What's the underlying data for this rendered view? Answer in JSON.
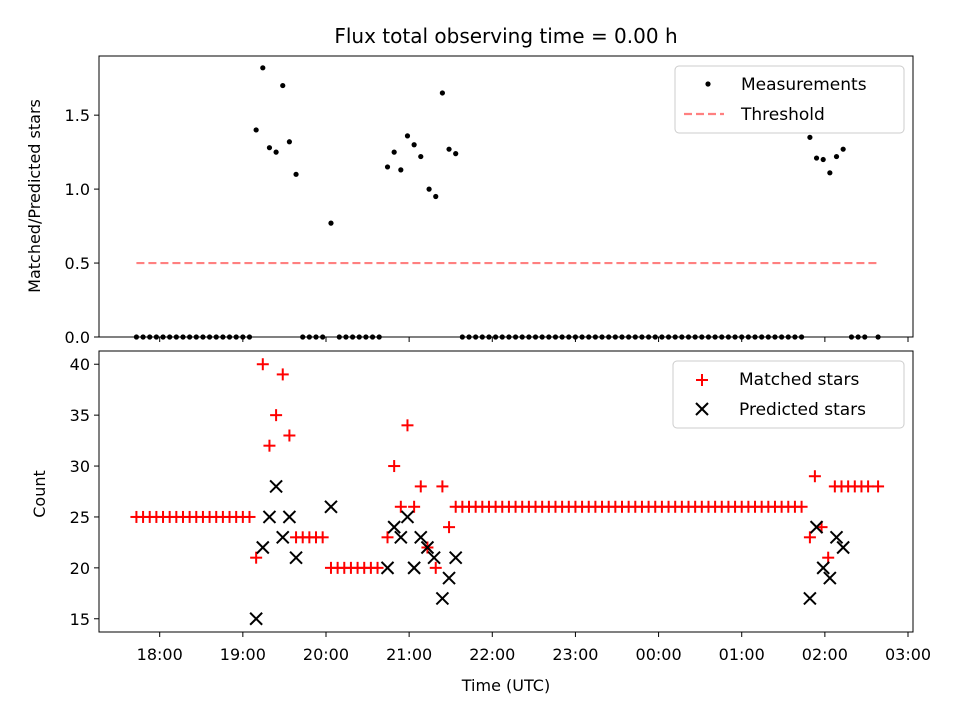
{
  "chart_data": [
    {
      "type": "scatter",
      "title": "Flux total observing time = 0.00 h",
      "xlabel": "",
      "ylabel": "Matched/Predicted stars",
      "xlim": [
        17.27,
        27.06
      ],
      "ylim": [
        0.0,
        1.9
      ],
      "yticks": [
        0.0,
        0.5,
        1.0,
        1.5
      ],
      "ytick_labels": [
        "0.0",
        "0.5",
        "1.0",
        "1.5"
      ],
      "legend": {
        "position": "top-right",
        "entries": [
          {
            "label": "Measurements",
            "marker": "dot",
            "color": "#000000"
          },
          {
            "label": "Threshold",
            "marker": "dashed-line",
            "color": "#ff8080"
          }
        ]
      },
      "threshold": {
        "value": 0.5,
        "x_start": 17.72,
        "x_end": 26.64
      },
      "series": [
        {
          "name": "Measurements",
          "points": [
            [
              17.72,
              0
            ],
            [
              17.8,
              0
            ],
            [
              17.88,
              0
            ],
            [
              17.96,
              0
            ],
            [
              18.04,
              0
            ],
            [
              18.12,
              0
            ],
            [
              18.2,
              0
            ],
            [
              18.28,
              0
            ],
            [
              18.36,
              0
            ],
            [
              18.44,
              0
            ],
            [
              18.52,
              0
            ],
            [
              18.6,
              0
            ],
            [
              18.68,
              0
            ],
            [
              18.76,
              0
            ],
            [
              18.84,
              0
            ],
            [
              18.92,
              0
            ],
            [
              19.0,
              0
            ],
            [
              19.08,
              0
            ],
            [
              19.16,
              1.4
            ],
            [
              19.24,
              1.82
            ],
            [
              19.32,
              1.28
            ],
            [
              19.4,
              1.25
            ],
            [
              19.48,
              1.7
            ],
            [
              19.56,
              1.32
            ],
            [
              19.64,
              1.1
            ],
            [
              19.72,
              0
            ],
            [
              19.8,
              0
            ],
            [
              19.88,
              0
            ],
            [
              19.96,
              0
            ],
            [
              20.06,
              0.77
            ],
            [
              20.16,
              0
            ],
            [
              20.24,
              0
            ],
            [
              20.32,
              0
            ],
            [
              20.4,
              0
            ],
            [
              20.48,
              0
            ],
            [
              20.56,
              0
            ],
            [
              20.64,
              0
            ],
            [
              20.74,
              1.15
            ],
            [
              20.82,
              1.25
            ],
            [
              20.9,
              1.13
            ],
            [
              20.98,
              1.36
            ],
            [
              21.06,
              1.3
            ],
            [
              21.14,
              1.22
            ],
            [
              21.24,
              1.0
            ],
            [
              21.32,
              0.95
            ],
            [
              21.4,
              1.65
            ],
            [
              21.48,
              1.27
            ],
            [
              21.56,
              1.24
            ],
            [
              21.64,
              0
            ],
            [
              21.72,
              0
            ],
            [
              21.8,
              0
            ],
            [
              21.88,
              0
            ],
            [
              21.96,
              0
            ],
            [
              22.04,
              0
            ],
            [
              22.12,
              0
            ],
            [
              22.2,
              0
            ],
            [
              22.28,
              0
            ],
            [
              22.36,
              0
            ],
            [
              22.44,
              0
            ],
            [
              22.52,
              0
            ],
            [
              22.6,
              0
            ],
            [
              22.68,
              0
            ],
            [
              22.76,
              0
            ],
            [
              22.84,
              0
            ],
            [
              22.92,
              0
            ],
            [
              23.0,
              0
            ],
            [
              23.08,
              0
            ],
            [
              23.16,
              0
            ],
            [
              23.24,
              0
            ],
            [
              23.32,
              0
            ],
            [
              23.4,
              0
            ],
            [
              23.48,
              0
            ],
            [
              23.56,
              0
            ],
            [
              23.64,
              0
            ],
            [
              23.72,
              0
            ],
            [
              23.8,
              0
            ],
            [
              23.88,
              0
            ],
            [
              23.96,
              0
            ],
            [
              24.04,
              0
            ],
            [
              24.12,
              0
            ],
            [
              24.2,
              0
            ],
            [
              24.28,
              0
            ],
            [
              24.36,
              0
            ],
            [
              24.44,
              0
            ],
            [
              24.52,
              0
            ],
            [
              24.6,
              0
            ],
            [
              24.68,
              0
            ],
            [
              24.76,
              0
            ],
            [
              24.84,
              0
            ],
            [
              24.92,
              0
            ],
            [
              25.0,
              0
            ],
            [
              25.08,
              0
            ],
            [
              25.16,
              0
            ],
            [
              25.24,
              0
            ],
            [
              25.32,
              0
            ],
            [
              25.4,
              0
            ],
            [
              25.48,
              0
            ],
            [
              25.56,
              0
            ],
            [
              25.64,
              0
            ],
            [
              25.72,
              0
            ],
            [
              25.82,
              1.35
            ],
            [
              25.9,
              1.21
            ],
            [
              25.98,
              1.2
            ],
            [
              26.06,
              1.11
            ],
            [
              26.14,
              1.22
            ],
            [
              26.22,
              1.27
            ],
            [
              26.32,
              0
            ],
            [
              26.4,
              0
            ],
            [
              26.48,
              0
            ],
            [
              26.64,
              0
            ]
          ]
        }
      ]
    },
    {
      "type": "scatter",
      "title": "",
      "xlabel": "Time (UTC)",
      "ylabel": "Count",
      "xlim": [
        17.27,
        27.06
      ],
      "ylim": [
        13.7,
        41.3
      ],
      "yticks": [
        15,
        20,
        25,
        30,
        35,
        40
      ],
      "ytick_labels": [
        "15",
        "20",
        "25",
        "30",
        "35",
        "40"
      ],
      "xticks": [
        18,
        19,
        20,
        21,
        22,
        23,
        24,
        25,
        26,
        27
      ],
      "xtick_labels": [
        "18:00",
        "19:00",
        "20:00",
        "21:00",
        "22:00",
        "23:00",
        "00:00",
        "01:00",
        "02:00",
        "03:00"
      ],
      "legend": {
        "position": "top-right",
        "entries": [
          {
            "label": "Matched stars",
            "marker": "plus",
            "color": "#ff0000"
          },
          {
            "label": "Predicted stars",
            "marker": "x",
            "color": "#000000"
          }
        ]
      },
      "series": [
        {
          "name": "Matched stars",
          "marker": "plus",
          "color": "#ff0000",
          "points": [
            [
              17.72,
              25
            ],
            [
              17.8,
              25
            ],
            [
              17.88,
              25
            ],
            [
              17.96,
              25
            ],
            [
              18.04,
              25
            ],
            [
              18.12,
              25
            ],
            [
              18.2,
              25
            ],
            [
              18.28,
              25
            ],
            [
              18.36,
              25
            ],
            [
              18.44,
              25
            ],
            [
              18.52,
              25
            ],
            [
              18.6,
              25
            ],
            [
              18.68,
              25
            ],
            [
              18.76,
              25
            ],
            [
              18.84,
              25
            ],
            [
              18.92,
              25
            ],
            [
              19.0,
              25
            ],
            [
              19.08,
              25
            ],
            [
              19.16,
              21
            ],
            [
              19.24,
              40
            ],
            [
              19.32,
              32
            ],
            [
              19.4,
              35
            ],
            [
              19.48,
              39
            ],
            [
              19.56,
              33
            ],
            [
              19.64,
              23
            ],
            [
              19.72,
              23
            ],
            [
              19.8,
              23
            ],
            [
              19.88,
              23
            ],
            [
              19.96,
              23
            ],
            [
              20.06,
              20
            ],
            [
              20.14,
              20
            ],
            [
              20.22,
              20
            ],
            [
              20.3,
              20
            ],
            [
              20.38,
              20
            ],
            [
              20.46,
              20
            ],
            [
              20.54,
              20
            ],
            [
              20.62,
              20
            ],
            [
              20.74,
              23
            ],
            [
              20.82,
              30
            ],
            [
              20.9,
              26
            ],
            [
              20.98,
              34
            ],
            [
              21.06,
              26
            ],
            [
              21.14,
              28
            ],
            [
              21.22,
              22
            ],
            [
              21.32,
              20
            ],
            [
              21.4,
              28
            ],
            [
              21.48,
              24
            ],
            [
              21.56,
              26
            ],
            [
              21.64,
              26
            ],
            [
              21.72,
              26
            ],
            [
              21.8,
              26
            ],
            [
              21.88,
              26
            ],
            [
              21.96,
              26
            ],
            [
              22.04,
              26
            ],
            [
              22.12,
              26
            ],
            [
              22.2,
              26
            ],
            [
              22.28,
              26
            ],
            [
              22.36,
              26
            ],
            [
              22.44,
              26
            ],
            [
              22.52,
              26
            ],
            [
              22.6,
              26
            ],
            [
              22.68,
              26
            ],
            [
              22.76,
              26
            ],
            [
              22.84,
              26
            ],
            [
              22.92,
              26
            ],
            [
              23.0,
              26
            ],
            [
              23.08,
              26
            ],
            [
              23.16,
              26
            ],
            [
              23.24,
              26
            ],
            [
              23.32,
              26
            ],
            [
              23.4,
              26
            ],
            [
              23.48,
              26
            ],
            [
              23.56,
              26
            ],
            [
              23.64,
              26
            ],
            [
              23.72,
              26
            ],
            [
              23.8,
              26
            ],
            [
              23.88,
              26
            ],
            [
              23.96,
              26
            ],
            [
              24.04,
              26
            ],
            [
              24.12,
              26
            ],
            [
              24.2,
              26
            ],
            [
              24.28,
              26
            ],
            [
              24.36,
              26
            ],
            [
              24.44,
              26
            ],
            [
              24.52,
              26
            ],
            [
              24.6,
              26
            ],
            [
              24.68,
              26
            ],
            [
              24.76,
              26
            ],
            [
              24.84,
              26
            ],
            [
              24.92,
              26
            ],
            [
              25.0,
              26
            ],
            [
              25.08,
              26
            ],
            [
              25.16,
              26
            ],
            [
              25.24,
              26
            ],
            [
              25.32,
              26
            ],
            [
              25.4,
              26
            ],
            [
              25.48,
              26
            ],
            [
              25.56,
              26
            ],
            [
              25.64,
              26
            ],
            [
              25.72,
              26
            ],
            [
              25.82,
              23
            ],
            [
              25.88,
              29
            ],
            [
              25.96,
              24
            ],
            [
              26.04,
              21
            ],
            [
              26.12,
              28
            ],
            [
              26.2,
              28
            ],
            [
              26.28,
              28
            ],
            [
              26.36,
              28
            ],
            [
              26.44,
              28
            ],
            [
              26.52,
              28
            ],
            [
              26.64,
              28
            ]
          ]
        },
        {
          "name": "Predicted stars",
          "marker": "x",
          "color": "#000000",
          "points": [
            [
              19.16,
              15
            ],
            [
              19.24,
              22
            ],
            [
              19.32,
              25
            ],
            [
              19.4,
              28
            ],
            [
              19.48,
              23
            ],
            [
              19.56,
              25
            ],
            [
              19.64,
              21
            ],
            [
              20.06,
              26
            ],
            [
              20.74,
              20
            ],
            [
              20.82,
              24
            ],
            [
              20.9,
              23
            ],
            [
              20.98,
              25
            ],
            [
              21.06,
              20
            ],
            [
              21.14,
              23
            ],
            [
              21.22,
              22
            ],
            [
              21.3,
              21
            ],
            [
              21.4,
              17
            ],
            [
              21.48,
              19
            ],
            [
              21.56,
              21
            ],
            [
              25.82,
              17
            ],
            [
              25.9,
              24
            ],
            [
              25.98,
              20
            ],
            [
              26.06,
              19
            ],
            [
              26.14,
              23
            ],
            [
              26.22,
              22
            ]
          ]
        }
      ]
    }
  ]
}
